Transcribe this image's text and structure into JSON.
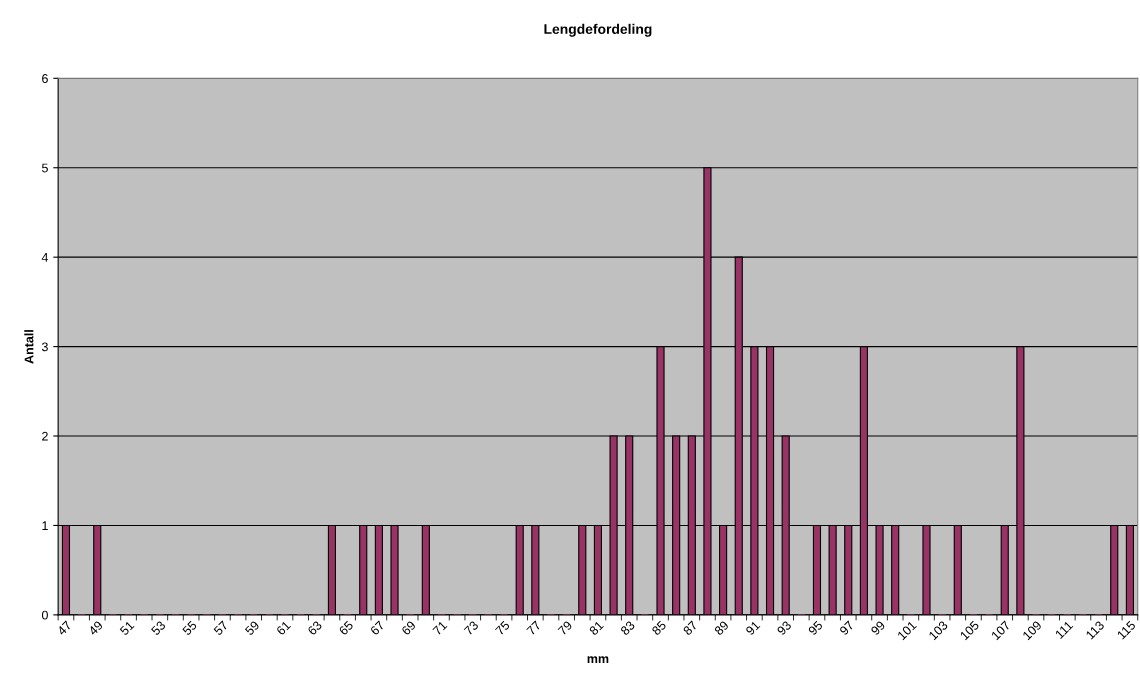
{
  "chart_data": {
    "type": "bar",
    "title": "Lengdefordeling",
    "xlabel": "mm",
    "ylabel": "Antall",
    "categories": [
      "47",
      null,
      "49",
      null,
      "51",
      null,
      "53",
      null,
      "55",
      null,
      "57",
      null,
      "59",
      null,
      "61",
      null,
      "63",
      null,
      "65",
      null,
      "67",
      null,
      "69",
      null,
      "71",
      null,
      "73",
      null,
      "75",
      null,
      "77",
      null,
      "79",
      null,
      "81",
      null,
      "83",
      null,
      "85",
      null,
      "87",
      null,
      "89",
      null,
      "91",
      null,
      "93",
      null,
      "95",
      null,
      "97",
      null,
      "99",
      null,
      "101",
      null,
      "103",
      null,
      "105",
      null,
      "107",
      null,
      "109",
      null,
      "111",
      null,
      "113",
      null,
      "115"
    ],
    "values": [
      1,
      0,
      1,
      0,
      0,
      0,
      0,
      0,
      0,
      0,
      0,
      0,
      0,
      0,
      0,
      0,
      0,
      1,
      0,
      1,
      1,
      1,
      0,
      1,
      0,
      0,
      0,
      0,
      0,
      1,
      1,
      0,
      0,
      1,
      1,
      2,
      2,
      0,
      3,
      2,
      2,
      5,
      1,
      4,
      3,
      3,
      2,
      0,
      1,
      1,
      1,
      3,
      1,
      1,
      0,
      1,
      0,
      1,
      0,
      0,
      1,
      3,
      0,
      0,
      0,
      0,
      0,
      1,
      1
    ],
    "color": "#993366",
    "ylim": [
      0,
      6
    ],
    "yticks": [
      0,
      1,
      2,
      3,
      4,
      5,
      6
    ],
    "grid": "y",
    "legend": false
  }
}
